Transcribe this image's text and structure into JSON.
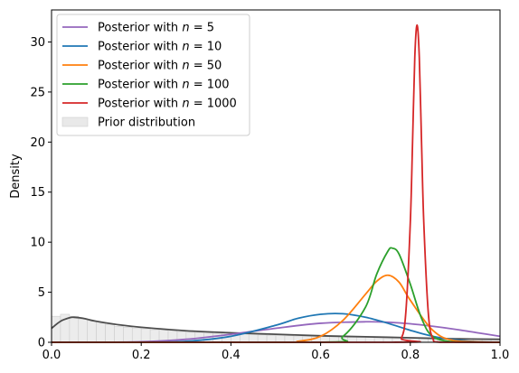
{
  "chart_data": {
    "type": "line",
    "title": "",
    "xlabel": "",
    "ylabel": "Density",
    "xlim": [
      0.0,
      1.0
    ],
    "ylim": [
      0,
      33.2
    ],
    "xticks": [
      "0.0",
      "0.2",
      "0.4",
      "0.6",
      "0.8",
      "1.0"
    ],
    "yticks": [
      "0",
      "5",
      "10",
      "15",
      "20",
      "25",
      "30"
    ],
    "grid": false,
    "legend_position": "top-left",
    "series": [
      {
        "name": "Posterior with n = 5",
        "legend_prefix": "Posterior with ",
        "legend_var": "n",
        "legend_suffix": " = 5",
        "color": "#9467bd",
        "x": [
          0.0,
          0.1,
          0.2,
          0.3,
          0.4,
          0.5,
          0.6,
          0.7,
          0.75,
          0.8,
          0.85,
          0.9,
          0.95,
          1.0
        ],
        "y": [
          0.0,
          0.0,
          0.05,
          0.3,
          0.8,
          1.4,
          1.9,
          2.05,
          2.0,
          1.85,
          1.6,
          1.3,
          0.95,
          0.6
        ]
      },
      {
        "name": "Posterior with n = 10",
        "legend_prefix": "Posterior with ",
        "legend_var": "n",
        "legend_suffix": " = 10",
        "color": "#1f77b4",
        "x": [
          0.0,
          0.2,
          0.3,
          0.4,
          0.5,
          0.55,
          0.6,
          0.65,
          0.7,
          0.75,
          0.8,
          0.85,
          0.9,
          0.95,
          1.0
        ],
        "y": [
          0.0,
          0.0,
          0.1,
          0.6,
          1.7,
          2.4,
          2.8,
          2.85,
          2.5,
          1.9,
          1.2,
          0.6,
          0.25,
          0.05,
          0.0
        ]
      },
      {
        "name": "Posterior with n = 50",
        "legend_prefix": "Posterior with ",
        "legend_var": "n",
        "legend_suffix": " = 50",
        "color": "#ff7f0e",
        "x": [
          0.0,
          0.5,
          0.55,
          0.6,
          0.65,
          0.7,
          0.725,
          0.75,
          0.775,
          0.8,
          0.85,
          0.9,
          1.0
        ],
        "y": [
          0.0,
          0.0,
          0.1,
          0.6,
          2.2,
          4.8,
          6.1,
          6.7,
          6.0,
          4.2,
          1.2,
          0.15,
          0.0
        ]
      },
      {
        "name": "Posterior with n = 100",
        "legend_prefix": "Posterior with ",
        "legend_var": "n",
        "legend_suffix": " = 100",
        "color": "#2ca02c",
        "x": [
          0.0,
          0.6,
          0.65,
          0.7,
          0.725,
          0.75,
          0.76,
          0.775,
          0.8,
          0.825,
          0.85,
          0.9,
          1.0
        ],
        "y": [
          0.0,
          0.0,
          0.6,
          3.5,
          6.8,
          9.1,
          9.4,
          8.8,
          5.8,
          2.4,
          0.6,
          0.02,
          0.0
        ]
      },
      {
        "name": "Posterior with n = 1000",
        "legend_prefix": "Posterior with ",
        "legend_var": "n",
        "legend_suffix": " = 1000",
        "color": "#d62728",
        "x": [
          0.0,
          0.76,
          0.78,
          0.79,
          0.8,
          0.805,
          0.81,
          0.815,
          0.82,
          0.825,
          0.83,
          0.84,
          0.85,
          0.87,
          1.0
        ],
        "y": [
          0.0,
          0.0,
          0.4,
          3.0,
          12.0,
          20.0,
          28.5,
          31.7,
          28.5,
          20.0,
          12.0,
          3.0,
          0.4,
          0.0,
          0.0
        ]
      },
      {
        "name": "",
        "color": "#4d4d4d",
        "x": [
          0.0,
          0.02,
          0.04,
          0.05,
          0.07,
          0.1,
          0.15,
          0.2,
          0.3,
          0.4,
          0.5,
          0.6,
          0.7,
          0.8,
          0.9,
          1.0
        ],
        "y": [
          1.4,
          2.1,
          2.45,
          2.5,
          2.4,
          2.1,
          1.75,
          1.5,
          1.15,
          0.95,
          0.8,
          0.65,
          0.55,
          0.45,
          0.35,
          0.3
        ]
      }
    ],
    "prior_histogram": {
      "name": "Prior distribution",
      "color": "#e0e0e0",
      "bins": [
        0.0,
        0.02,
        0.04,
        0.06,
        0.08,
        0.1,
        0.12,
        0.14,
        0.16,
        0.18,
        0.2,
        0.22,
        0.24,
        0.26,
        0.28,
        0.3,
        0.32,
        0.34,
        0.36,
        0.38,
        0.4,
        0.42,
        0.44,
        0.46,
        0.48,
        0.5,
        0.52,
        0.54,
        0.56,
        0.58,
        0.6,
        0.62,
        0.64,
        0.66,
        0.68,
        0.7,
        0.72,
        0.74,
        0.76,
        0.78,
        0.8,
        0.82,
        0.84,
        0.86,
        0.88,
        0.9,
        0.92,
        0.94,
        0.96,
        0.98,
        1.0
      ],
      "heights": [
        2.6,
        2.8,
        2.6,
        2.3,
        2.1,
        1.9,
        1.75,
        1.6,
        1.5,
        1.4,
        1.35,
        1.25,
        1.2,
        1.1,
        1.05,
        1.0,
        0.95,
        0.92,
        0.88,
        0.85,
        0.82,
        0.8,
        0.76,
        0.74,
        0.7,
        0.68,
        0.65,
        0.62,
        0.6,
        0.58,
        0.56,
        0.55,
        0.53,
        0.51,
        0.5,
        0.48,
        0.46,
        0.45,
        0.44,
        0.42,
        0.41,
        0.4,
        0.38,
        0.37,
        0.36,
        0.35,
        0.34,
        0.33,
        0.32,
        0.3
      ]
    }
  }
}
